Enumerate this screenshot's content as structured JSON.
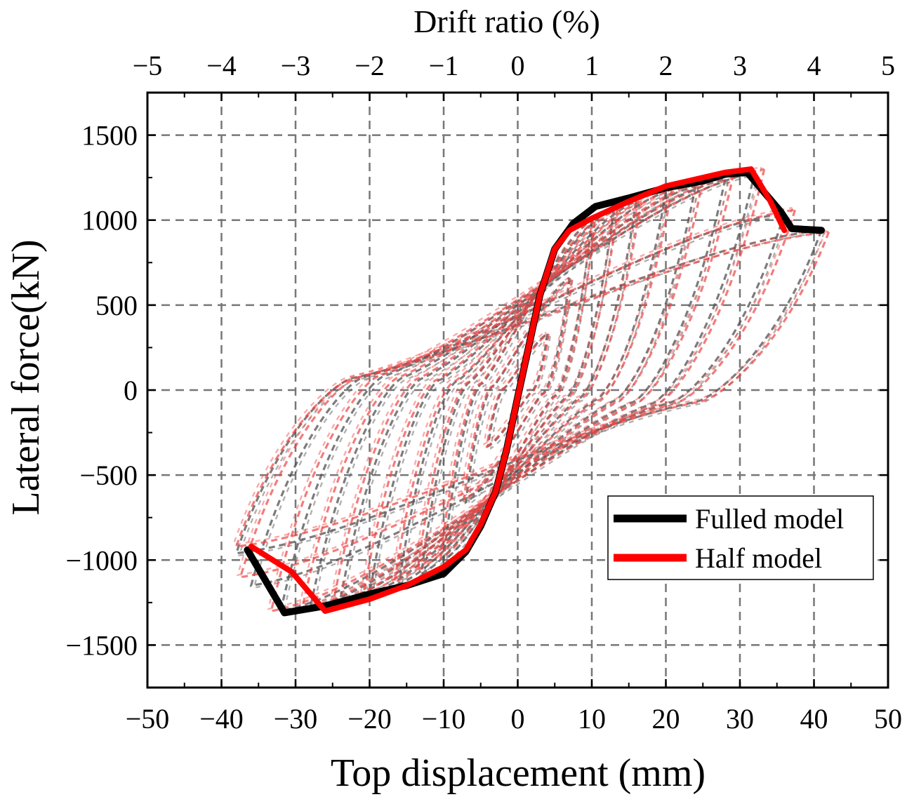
{
  "chart_data": {
    "type": "line",
    "title": "",
    "xlabel": "Top displacement (mm)",
    "ylabel": "Lateral force(kN)",
    "x2label": "Drift ratio (%)",
    "xlim": [
      -50,
      50
    ],
    "ylim": [
      -1750,
      1750
    ],
    "x2lim": [
      -5,
      5
    ],
    "grid": true,
    "legend_position": "lower-right",
    "x_ticks": [
      {
        "value": -50,
        "label": "−50"
      },
      {
        "value": -40,
        "label": "−40"
      },
      {
        "value": -30,
        "label": "−30"
      },
      {
        "value": -20,
        "label": "−20"
      },
      {
        "value": -10,
        "label": "−10"
      },
      {
        "value": 0,
        "label": "0"
      },
      {
        "value": 10,
        "label": "10"
      },
      {
        "value": 20,
        "label": "20"
      },
      {
        "value": 30,
        "label": "30"
      },
      {
        "value": 40,
        "label": "40"
      },
      {
        "value": 50,
        "label": "50"
      }
    ],
    "y_ticks": [
      {
        "value": -1500,
        "label": "−1500"
      },
      {
        "value": -1000,
        "label": "−1000"
      },
      {
        "value": -500,
        "label": "−500"
      },
      {
        "value": 0,
        "label": "0"
      },
      {
        "value": 500,
        "label": "500"
      },
      {
        "value": 1000,
        "label": "1000"
      },
      {
        "value": 1500,
        "label": "1500"
      }
    ],
    "x2_ticks": [
      {
        "value": -5,
        "label": "−5"
      },
      {
        "value": -4,
        "label": "−4"
      },
      {
        "value": -3,
        "label": "−3"
      },
      {
        "value": -2,
        "label": "−2"
      },
      {
        "value": -1,
        "label": "−1"
      },
      {
        "value": 0,
        "label": "0"
      },
      {
        "value": 1,
        "label": "1"
      },
      {
        "value": 2,
        "label": "2"
      },
      {
        "value": 3,
        "label": "3"
      },
      {
        "value": 4,
        "label": "4"
      },
      {
        "value": 5,
        "label": "5"
      }
    ],
    "cycle_amplitudes_mm": [
      4,
      7,
      10,
      13,
      16,
      20,
      24,
      28,
      32,
      36,
      41
    ],
    "series": [
      {
        "name": "Fulled model",
        "color": "#000000",
        "kind": "skeleton",
        "x": [
          -36.5,
          -31.5,
          -26,
          -20,
          -15,
          -10,
          -7,
          -5,
          -3,
          -1.5,
          0,
          1.5,
          3,
          5,
          7.5,
          10.5,
          15,
          20,
          25,
          28,
          31,
          35.5,
          37,
          41
        ],
        "y": [
          -940,
          -1310,
          -1270,
          -1200,
          -1150,
          -1080,
          -950,
          -800,
          -600,
          -350,
          -40,
          260,
          560,
          830,
          980,
          1080,
          1130,
          1190,
          1230,
          1270,
          1280,
          1050,
          950,
          940
        ]
      },
      {
        "name": "Half model",
        "color": "#ff0000",
        "kind": "skeleton",
        "x": [
          -36,
          -30.5,
          -26,
          -20,
          -15,
          -10,
          -7,
          -5,
          -3,
          -1.5,
          0,
          1.5,
          3,
          5,
          7,
          10,
          15,
          20,
          25,
          28,
          31.5,
          34,
          36
        ],
        "y": [
          -920,
          -1070,
          -1300,
          -1230,
          -1150,
          -1040,
          -940,
          -790,
          -600,
          -350,
          -40,
          260,
          560,
          830,
          940,
          1010,
          1110,
          1200,
          1250,
          1280,
          1300,
          1120,
          940
        ]
      },
      {
        "name": "Fulled model hysteresis",
        "color": "#505050",
        "kind": "hysteresis",
        "y_peaks_positive": [
          330,
          660,
          1000,
          1075,
          1110,
          1165,
          1200,
          1240,
          1280,
          1040,
          940
        ],
        "y_peaks_negative": [
          -330,
          -660,
          -1000,
          -1080,
          -1140,
          -1200,
          -1245,
          -1280,
          -1300,
          -1150,
          -960
        ]
      },
      {
        "name": "Half model hysteresis",
        "color": "#ee4444",
        "kind": "hysteresis",
        "y_peaks_positive": [
          330,
          650,
          990,
          1070,
          1110,
          1180,
          1230,
          1270,
          1300,
          1060,
          930
        ],
        "y_peaks_negative": [
          -330,
          -650,
          -990,
          -1060,
          -1130,
          -1200,
          -1260,
          -1290,
          -1300,
          -1100,
          -920
        ]
      }
    ]
  },
  "legend": {
    "items": [
      {
        "label": "Fulled model",
        "color": "#000000"
      },
      {
        "label": "Half model",
        "color": "#ff0000"
      }
    ]
  }
}
